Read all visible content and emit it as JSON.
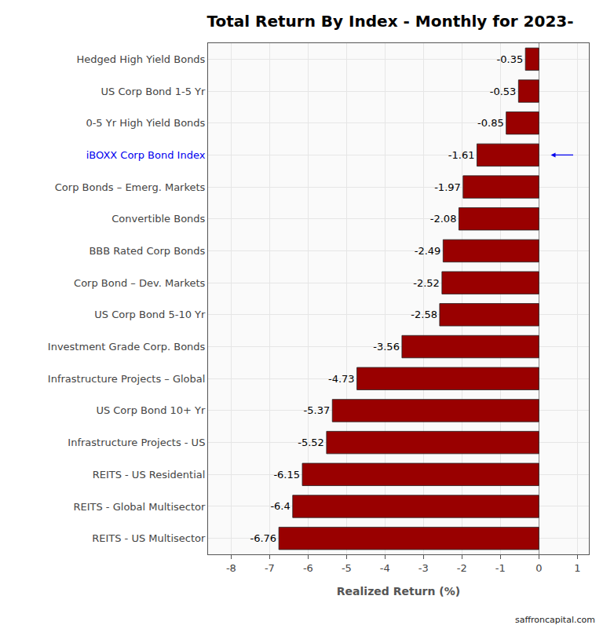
{
  "chart_data": {
    "type": "bar",
    "orientation": "horizontal",
    "title": "Total Return By Index - Monthly for 2023-",
    "x_label": "Realized Return (%)",
    "categories": [
      "Hedged High Yield Bonds",
      "US Corp Bond 1-5 Yr",
      "0-5 Yr High Yield Bonds",
      "iBOXX Corp Bond Index",
      "Corp Bonds – Emerg. Markets",
      "Convertible Bonds",
      "BBB Rated Corp Bonds",
      "Corp Bond – Dev. Markets",
      "US Corp Bond 5-10 Yr",
      "Investment Grade Corp. Bonds",
      "Infrastructure Projects – Global",
      "US Corp Bond 10+ Yr",
      "Infrastructure Projects - US",
      "REITS - US Residential",
      "REITS - Global Multisector",
      "REITS - US Multisector"
    ],
    "values": [
      -0.35,
      -0.53,
      -0.85,
      -1.61,
      -1.97,
      -2.08,
      -2.49,
      -2.52,
      -2.58,
      -3.56,
      -4.73,
      -5.37,
      -5.52,
      -6.15,
      -6.4,
      -6.76
    ],
    "color": "#990000",
    "highlight": "iBOXX Corp Bond Index",
    "xlim": [
      -8.6,
      1.3
    ],
    "xticks": [
      -8,
      -7,
      -6,
      -5,
      -4,
      -3,
      -2,
      -1,
      0,
      1
    ],
    "grid": true,
    "data_labels": true,
    "annotations": [
      "saffroncapital.com"
    ]
  }
}
